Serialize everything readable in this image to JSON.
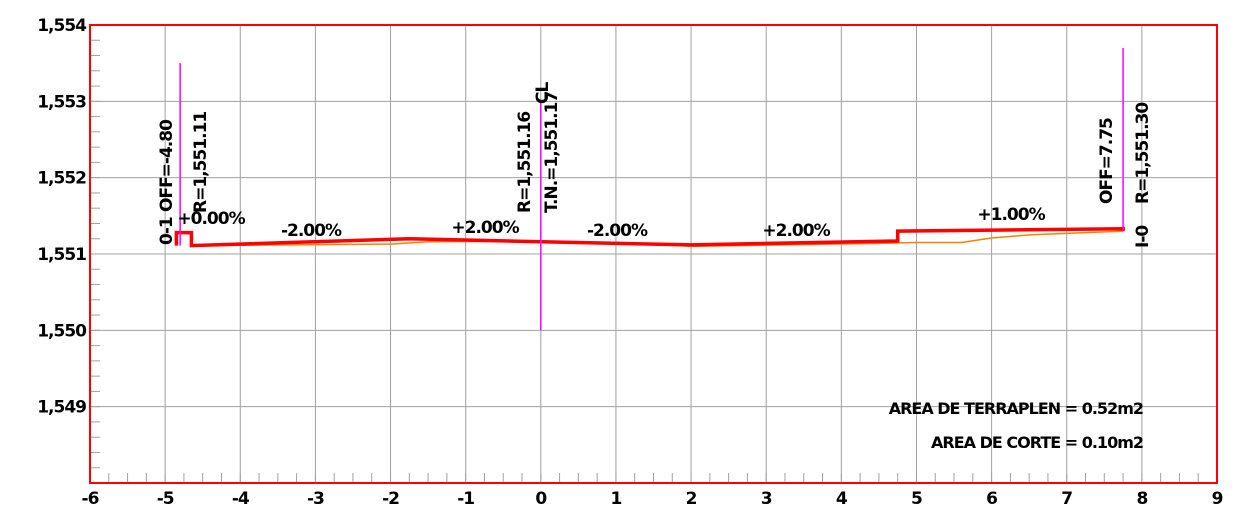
{
  "chart_data": {
    "type": "line",
    "title": "",
    "xlabel": "",
    "ylabel": "",
    "xlim": [
      -6,
      9
    ],
    "ylim": [
      1548,
      1554
    ],
    "x_ticks": [
      "-6",
      "-5",
      "-4",
      "-3",
      "-2",
      "-1",
      "0",
      "1",
      "2",
      "3",
      "4",
      "5",
      "6",
      "7",
      "8",
      "9"
    ],
    "y_ticks": [
      "1,549",
      "1,550",
      "1,551",
      "1,552",
      "1,553",
      "1,554"
    ],
    "grid": true,
    "colors": {
      "frame": "#ff0000",
      "grid": "#a0a0a0",
      "design": "#ff0000",
      "ground": "#ff8000",
      "offsets": "#ff00ff"
    },
    "series": [
      {
        "x": [
          -4.85,
          -4.85,
          -4.65,
          -4.65,
          -1.75,
          0,
          2,
          4.75,
          4.75,
          7.75,
          7.75
        ],
        "y": [
          1551.11,
          1551.28,
          1551.28,
          1551.11,
          1551.2,
          1551.16,
          1551.12,
          1551.17,
          1551.3,
          1551.33,
          1551.3
        ]
      },
      {
        "x": [
          -4.65,
          -2.0,
          -1.5,
          0,
          1.5,
          2.0,
          4.5,
          5.0,
          5.6,
          6.0,
          6.5,
          7.0,
          7.5,
          7.75
        ],
        "y": [
          1551.11,
          1551.13,
          1551.16,
          1551.17,
          1551.13,
          1551.1,
          1551.14,
          1551.15,
          1551.15,
          1551.21,
          1551.25,
          1551.27,
          1551.29,
          1551.3
        ]
      }
    ],
    "vertical_lines": [
      {
        "x": -4.8,
        "y": [
          1551.11,
          1553.5
        ]
      },
      {
        "x": 0,
        "y": [
          1550.0,
          1553.0
        ]
      },
      {
        "x": 7.75,
        "y": [
          1551.3,
          1553.7
        ]
      }
    ],
    "annotations": {
      "left_off": "OFF=-4.80",
      "left_r": "R=1,551.11",
      "left_code": "0-1",
      "left_slope": "+0.00%",
      "center_r": "R=1,551.16",
      "center_tn": "T.N.=1,551.17",
      "center_mark": "CL",
      "right_off": "OFF=7.75",
      "right_r": "R=1,551.30",
      "right_code": "I-0",
      "slope_1": "-2.00%",
      "slope_2": "+2.00%",
      "slope_3": "-2.00%",
      "slope_4": "+2.00%",
      "slope_5": "+1.00%",
      "area_fill": "AREA DE TERRAPLEN = 0.52m2",
      "area_cut": "AREA DE CORTE = 0.10m2"
    }
  }
}
